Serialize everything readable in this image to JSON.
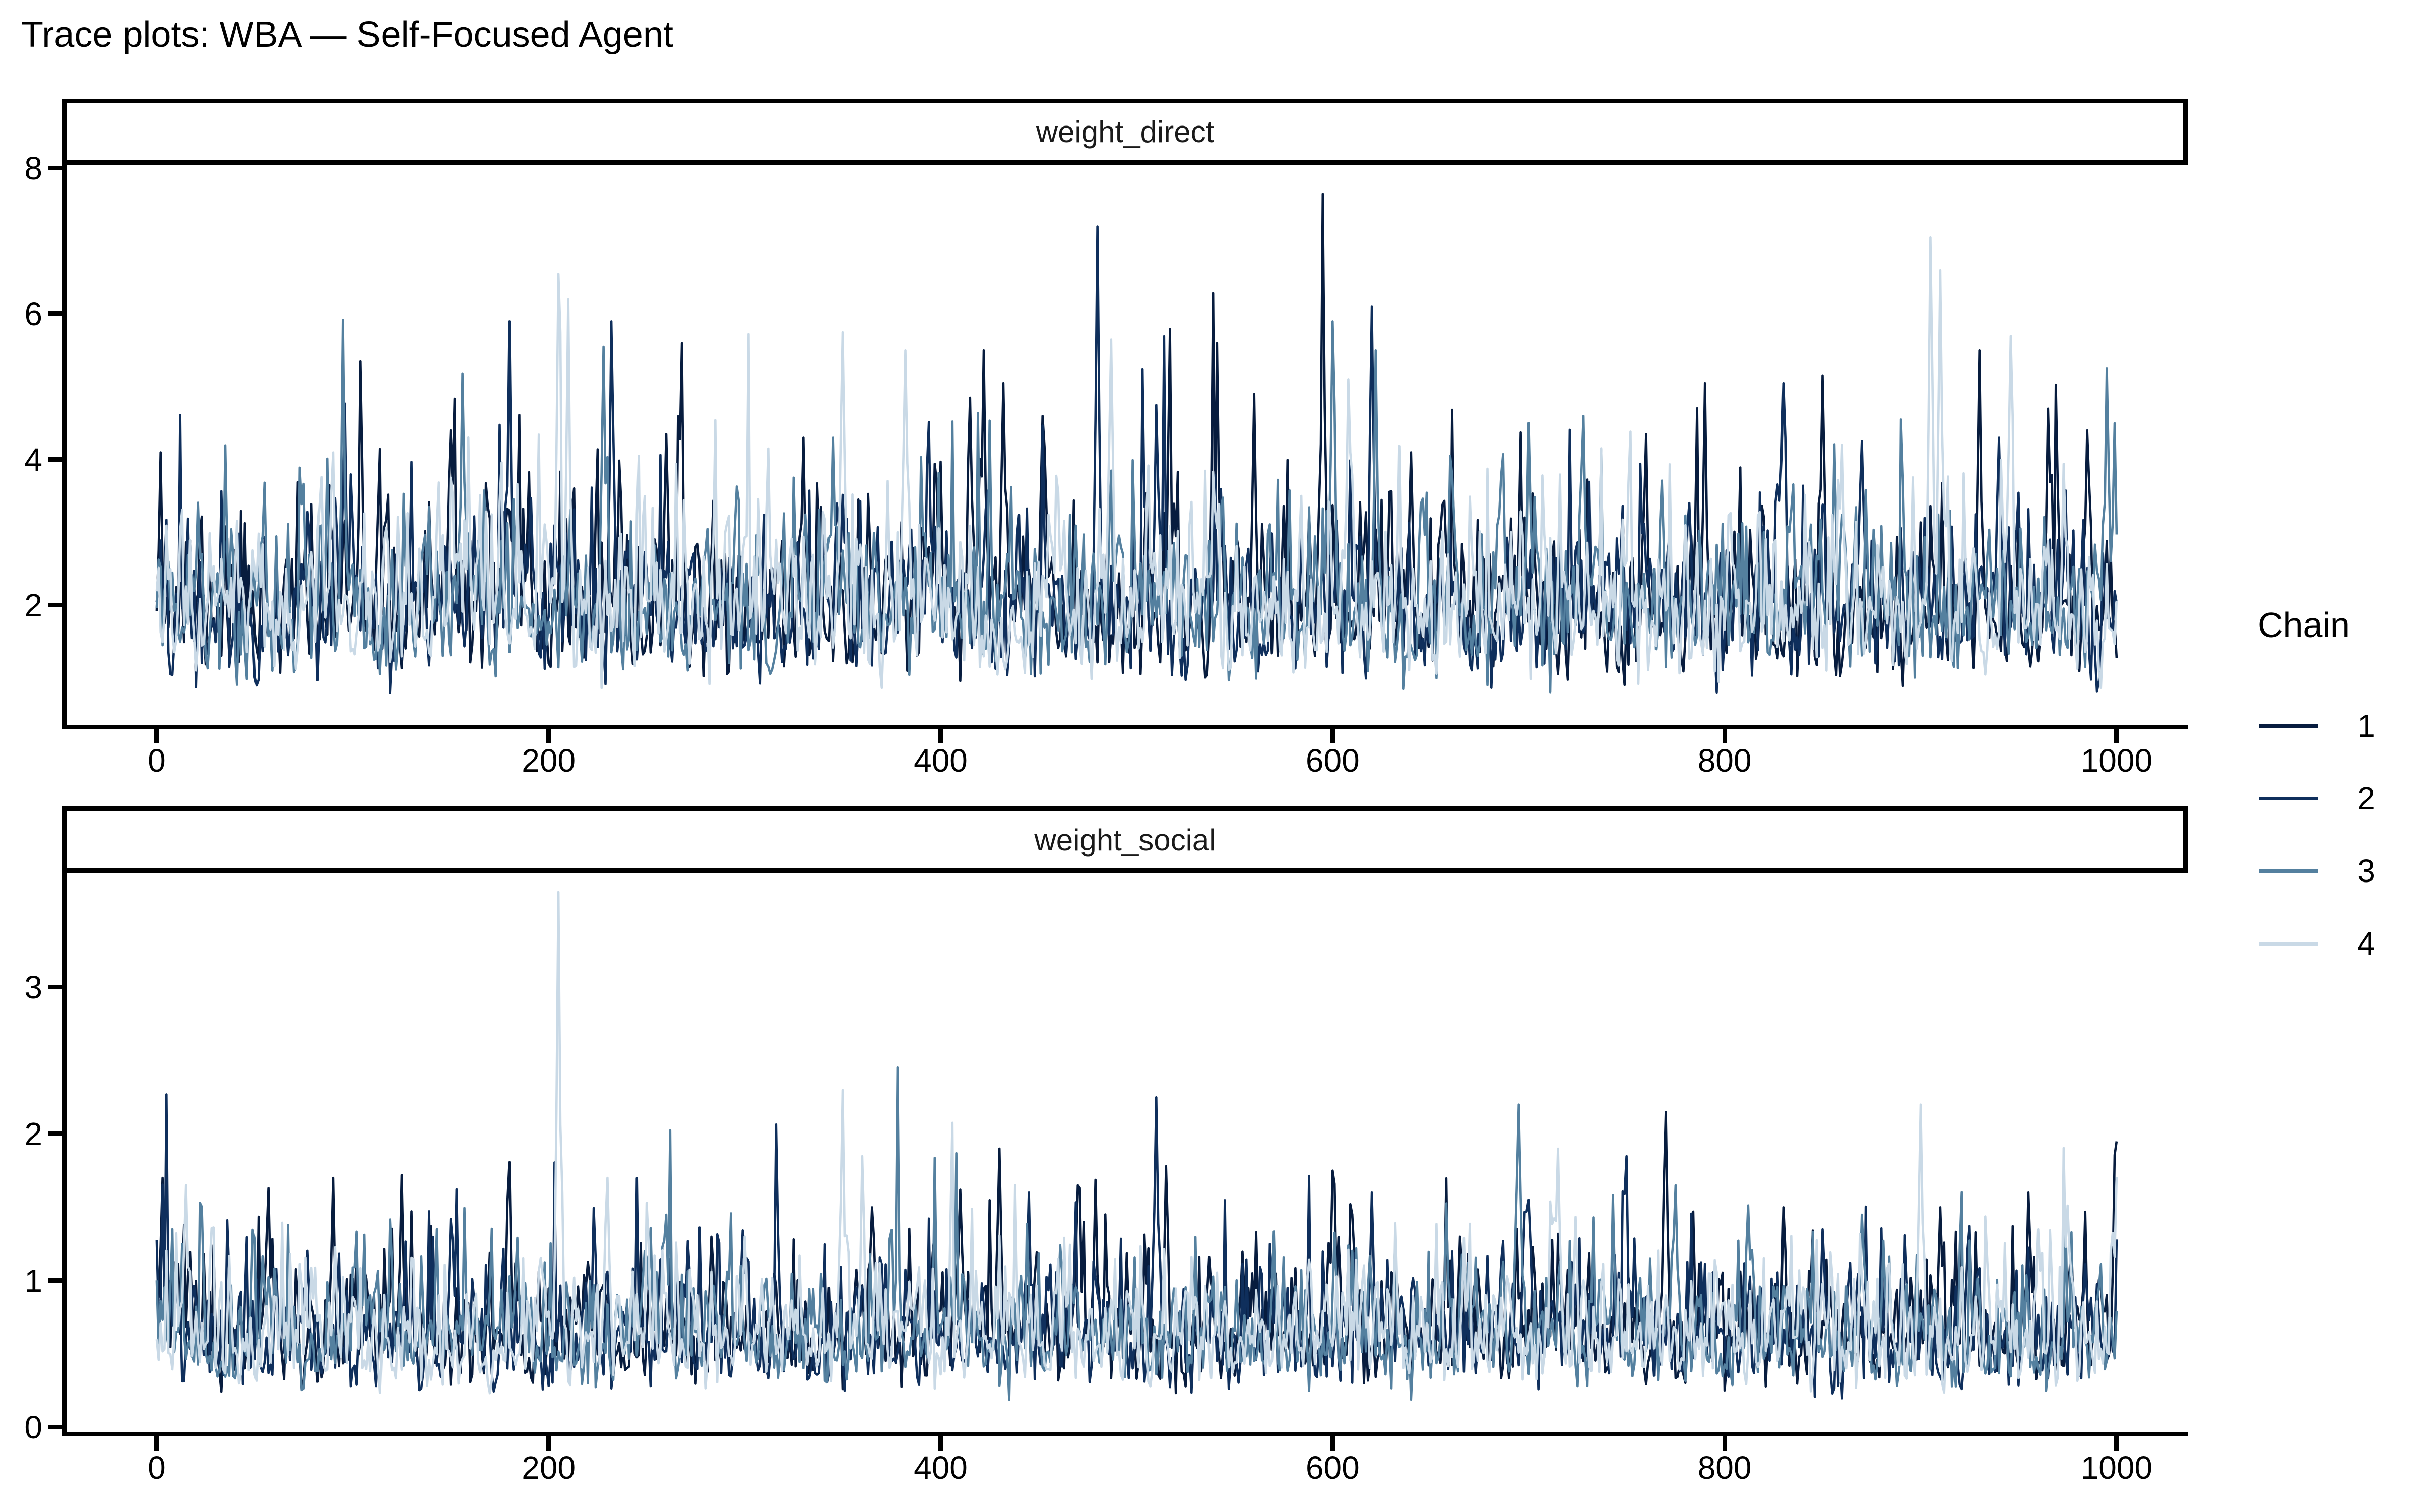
{
  "title": "Trace plots: WBA — Self-Focused Agent",
  "legend": {
    "title": "Chain",
    "position": "right",
    "items": [
      {
        "label": "1",
        "color": "#071c3e"
      },
      {
        "label": "2",
        "color": "#0f2f5c"
      },
      {
        "label": "3",
        "color": "#54809f"
      },
      {
        "label": "4",
        "color": "#c9d9e6"
      }
    ]
  },
  "chart_data": [
    {
      "type": "line",
      "title": "weight_direct",
      "xlabel": "",
      "ylabel": "",
      "grid": false,
      "legend_position": "right",
      "x_ticks": [
        0,
        200,
        400,
        600,
        800,
        1000
      ],
      "y_ticks": [
        2,
        4,
        6,
        8
      ],
      "x_range": [
        -46,
        1035
      ],
      "y_range": [
        0.332,
        8.048
      ],
      "n_iterations": 1000,
      "description": "MCMC trace, 4 chains; bulk oscillates ~1.0-3.6 around median ~2.0 with occasional spikes to 4-7.7",
      "series": [
        {
          "name": "1",
          "color": "#071c3e",
          "seed": 11,
          "n": 1000,
          "ar": 0.3,
          "mu": 0.693,
          "sigma": 0.3,
          "min": 0.55,
          "spikes": [
            [
              2,
              4.1
            ],
            [
              104,
              5.35
            ],
            [
              150,
              4.4
            ],
            [
              260,
              4.35
            ],
            [
              330,
              4.3
            ],
            [
              415,
              4.85
            ],
            [
              422,
              5.5
            ],
            [
              432,
              5.05
            ],
            [
              452,
              4.6
            ],
            [
              560,
              4.9
            ],
            [
              595,
              7.65
            ],
            [
              640,
              4.1
            ],
            [
              760,
              4.35
            ],
            [
              790,
              5.05
            ],
            [
              850,
              5.15
            ],
            [
              930,
              5.5
            ],
            [
              965,
              4.7
            ],
            [
              985,
              4.4
            ]
          ]
        },
        {
          "name": "2",
          "color": "#0f2f5c",
          "seed": 22,
          "n": 1000,
          "ar": 0.3,
          "mu": 0.693,
          "sigma": 0.3,
          "min": 0.55,
          "spikes": [
            [
              180,
              5.9
            ],
            [
              232,
              5.9
            ],
            [
              480,
              7.2
            ],
            [
              510,
              4.75
            ],
            [
              620,
              6.1
            ],
            [
              830,
              5.05
            ],
            [
              870,
              4.25
            ],
            [
              940,
              4.3
            ]
          ]
        },
        {
          "name": "3",
          "color": "#54809f",
          "seed": 33,
          "n": 1000,
          "ar": 0.3,
          "mu": 0.693,
          "sigma": 0.3,
          "min": 0.55,
          "spikes": [
            [
              95,
              5.92
            ],
            [
              228,
              5.55
            ],
            [
              345,
              4.3
            ],
            [
              600,
              5.9
            ],
            [
              622,
              5.5
            ],
            [
              660,
              4.05
            ],
            [
              700,
              4.5
            ],
            [
              728,
              4.6
            ],
            [
              995,
              5.25
            ],
            [
              999,
              4.5
            ]
          ]
        },
        {
          "name": "4",
          "color": "#c9d9e6",
          "seed": 44,
          "n": 1000,
          "ar": 0.3,
          "mu": 0.693,
          "sigma": 0.3,
          "min": 0.55,
          "spikes": [
            [
              205,
              6.55
            ],
            [
              210,
              6.2
            ],
            [
              350,
              5.75
            ],
            [
              382,
              5.5
            ],
            [
              487,
              5.65
            ],
            [
              860,
              4.2
            ],
            [
              905,
              7.05
            ],
            [
              910,
              6.6
            ]
          ]
        }
      ]
    },
    {
      "type": "line",
      "title": "weight_social",
      "xlabel": "",
      "ylabel": "",
      "grid": false,
      "legend_position": "right",
      "x_ticks": [
        0,
        200,
        400,
        600,
        800,
        1000
      ],
      "y_ticks": [
        0,
        1,
        2,
        3
      ],
      "x_range": [
        -46,
        1035
      ],
      "y_range": [
        -0.045,
        3.78
      ],
      "n_iterations": 1000,
      "description": "MCMC trace, 4 chains; bulk oscillates ~0.3-1.2 around median ~0.65 with occasional spikes to 1.5-3.65",
      "series": [
        {
          "name": "1",
          "color": "#071c3e",
          "seed": 55,
          "n": 1000,
          "ar": 0.3,
          "mu": -0.431,
          "sigma": 0.36,
          "min": 0.12,
          "spikes": [
            [
              3,
              1.7
            ],
            [
              90,
              1.7
            ],
            [
              125,
              1.72
            ],
            [
              365,
              1.5
            ],
            [
              410,
              1.62
            ],
            [
              430,
              1.9
            ],
            [
              470,
              1.65
            ],
            [
              515,
              1.78
            ],
            [
              600,
              1.75
            ],
            [
              770,
              2.15
            ],
            [
              830,
              1.5
            ],
            [
              910,
              1.5
            ],
            [
              955,
              1.6
            ],
            [
              1000,
              1.95
            ]
          ]
        },
        {
          "name": "2",
          "color": "#0f2f5c",
          "seed": 66,
          "n": 1000,
          "ar": 0.3,
          "mu": -0.431,
          "sigma": 0.36,
          "min": 0.12,
          "spikes": [
            [
              150,
              1.42
            ],
            [
              445,
              1.6
            ],
            [
              510,
              2.25
            ],
            [
              620,
              1.6
            ],
            [
              700,
              1.55
            ],
            [
              850,
              1.35
            ]
          ]
        },
        {
          "name": "3",
          "color": "#54809f",
          "seed": 77,
          "n": 1000,
          "ar": 0.3,
          "mu": -0.431,
          "sigma": 0.36,
          "min": 0.12,
          "spikes": [
            [
              260,
              1.45
            ],
            [
              695,
              2.2
            ],
            [
              775,
              1.65
            ],
            [
              870,
              1.45
            ]
          ]
        },
        {
          "name": "4",
          "color": "#c9d9e6",
          "seed": 88,
          "n": 1000,
          "ar": 0.3,
          "mu": -0.431,
          "sigma": 0.36,
          "min": 0.12,
          "spikes": [
            [
              15,
              1.65
            ],
            [
              205,
              3.65
            ],
            [
              230,
              1.7
            ],
            [
              300,
              1.3
            ],
            [
              350,
              2.3
            ],
            [
              715,
              1.9
            ],
            [
              900,
              2.2
            ],
            [
              960,
              1.35
            ]
          ]
        }
      ]
    }
  ]
}
